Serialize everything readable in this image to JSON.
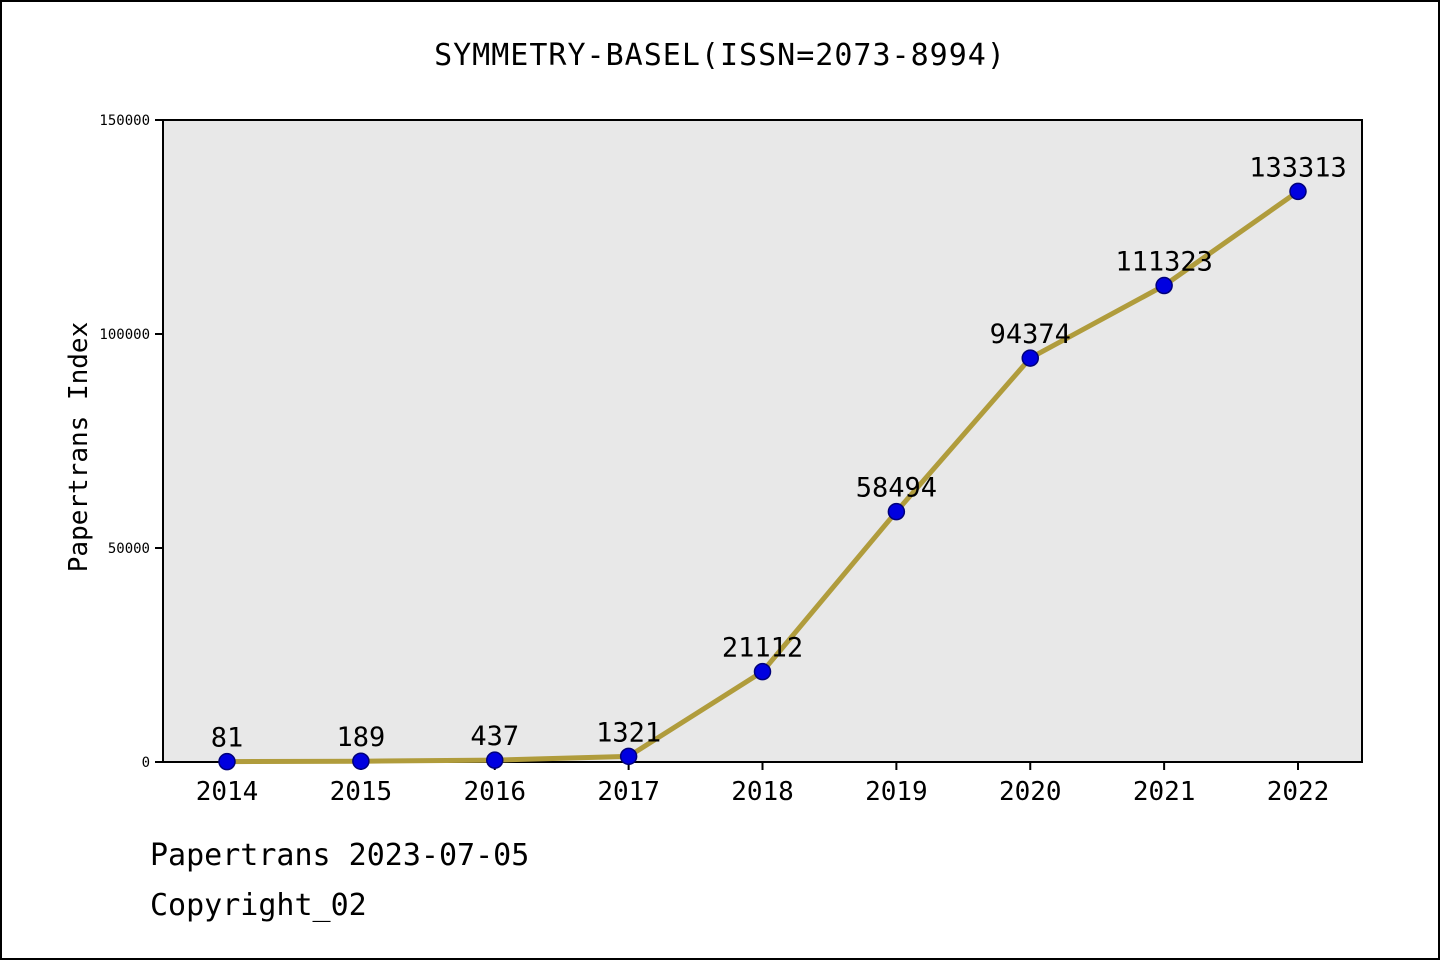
{
  "title": "SYMMETRY-BASEL(ISSN=2073-8994)",
  "footer": {
    "line1": "Papertrans 2023-07-05",
    "line2": "Copyright_02"
  },
  "chart_data": {
    "type": "line",
    "title": "SYMMETRY-BASEL(ISSN=2073-8994)",
    "xlabel": "",
    "ylabel": "Papertrans Index",
    "x": [
      2014,
      2015,
      2016,
      2017,
      2018,
      2019,
      2020,
      2021,
      2022
    ],
    "values": [
      81,
      189,
      437,
      1321,
      21112,
      58494,
      94374,
      111323,
      133313
    ],
    "ylim": [
      0,
      150000
    ],
    "yticks": [
      0,
      50000,
      100000,
      150000
    ],
    "grid": false,
    "legend": "none",
    "line_color": "#b09c3c",
    "marker_color": "#0000e0",
    "marker_edge_color": "#00007a",
    "plot_bg": "#e8e8e8",
    "frame_color": "#000000"
  }
}
